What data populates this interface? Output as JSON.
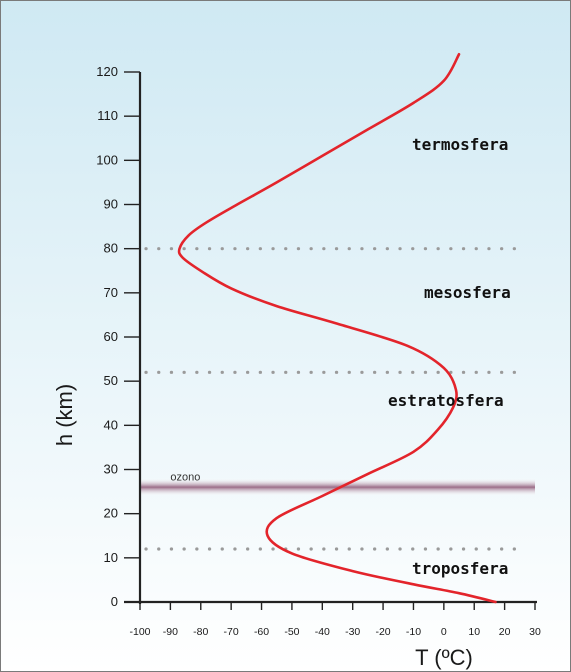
{
  "chart_data": {
    "type": "line",
    "xlabel": "T (ºC)",
    "ylabel": "h (km)",
    "xlim": [
      -100,
      30
    ],
    "ylim": [
      0,
      120
    ],
    "x_ticks": [
      -100,
      -90,
      -80,
      -70,
      -60,
      -50,
      -40,
      -30,
      -20,
      -10,
      0,
      10,
      20,
      30
    ],
    "y_ticks": [
      0,
      10,
      20,
      30,
      40,
      50,
      60,
      70,
      80,
      90,
      100,
      110,
      120
    ],
    "series": [
      {
        "color": "#e3242b",
        "x": [
          17,
          5,
          -10,
          -30,
          -50,
          -58,
          -55,
          -40,
          -25,
          -10,
          -2,
          3,
          4,
          0,
          -12,
          -35,
          -55,
          -70,
          -80,
          -86,
          -87,
          -84,
          -78,
          -68,
          -55,
          -40,
          -25,
          -10,
          0,
          5
        ],
        "y": [
          0,
          2,
          4,
          7,
          11,
          15,
          19,
          24,
          29,
          34,
          39,
          44,
          48,
          53,
          58,
          63,
          67,
          71,
          75,
          78,
          80,
          83,
          86,
          90,
          95,
          101,
          107,
          113,
          118,
          124
        ]
      }
    ],
    "boundaries": [
      {
        "y": 12
      },
      {
        "y": 52
      },
      {
        "y": 80
      }
    ],
    "ozone_band": {
      "label": "ozono",
      "y_range": [
        24,
        28
      ]
    },
    "layers": [
      {
        "label": "troposfera"
      },
      {
        "label": "estratosfera"
      },
      {
        "label": "mesosfera"
      },
      {
        "label": "termosfera"
      }
    ],
    "grid": false,
    "colors": {
      "background_top": "#cfe9f3",
      "background_bottom": "#ffffff",
      "curve": "#e3242b",
      "boundary": "#9a9a9a",
      "ozone": "#9b6d88",
      "axis": "#222222"
    }
  }
}
